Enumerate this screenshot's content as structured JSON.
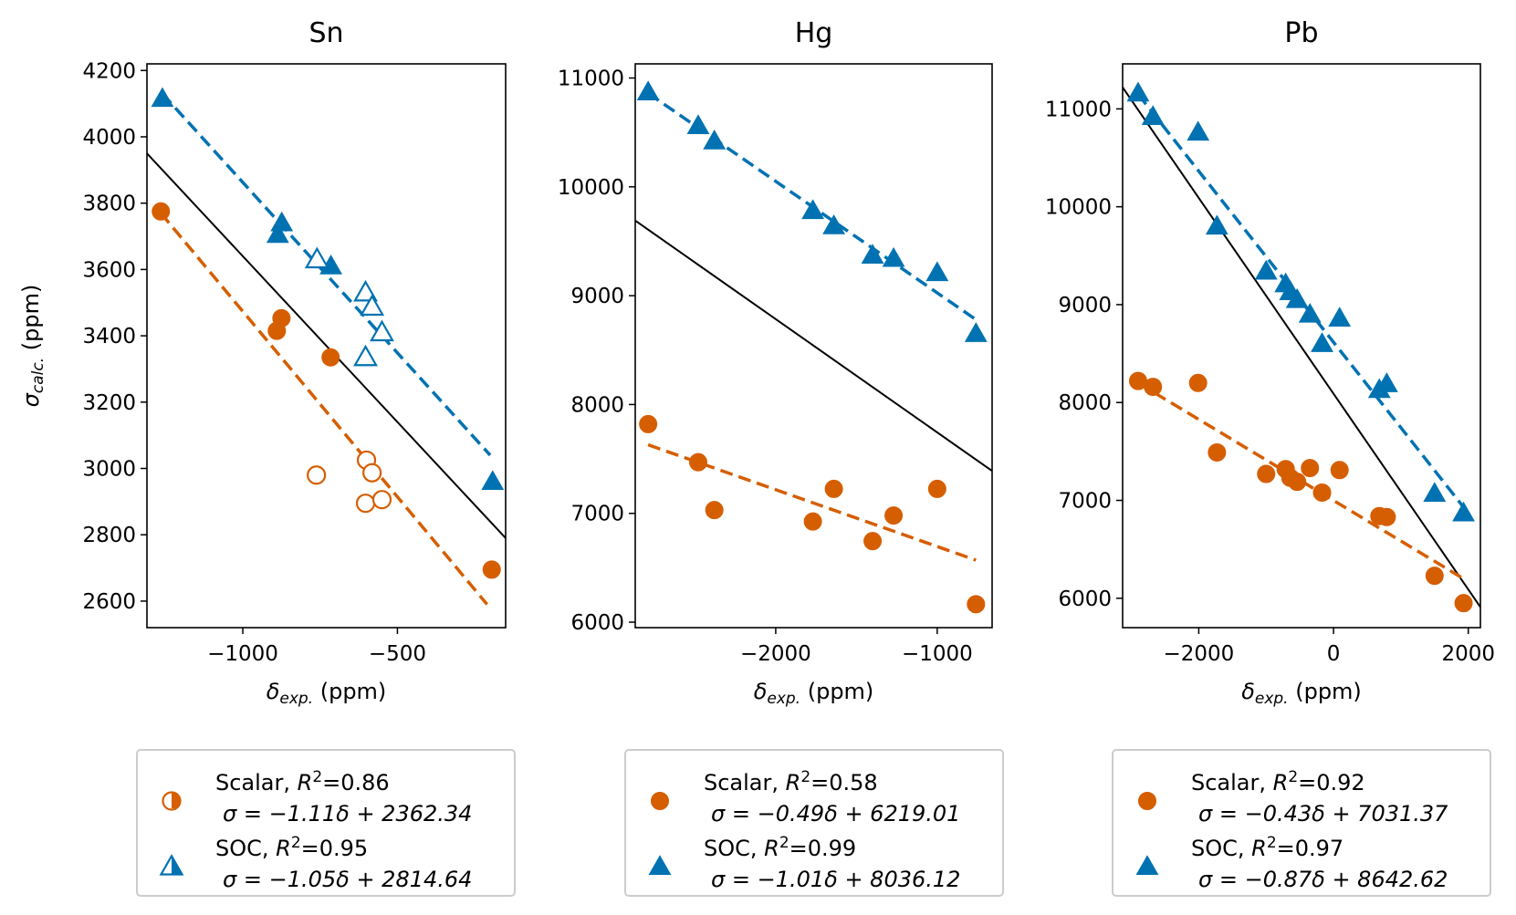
{
  "figure": {
    "ylabel": "σcalc. (ppm)",
    "xlabel": "δexp. (ppm)"
  },
  "colors": {
    "scalar": "#d55e00",
    "soc": "#0072b2",
    "reference": "#000000"
  },
  "chart_data": [
    {
      "type": "scatter",
      "title": "Sn",
      "xlabel": "δexp. (ppm)",
      "ylabel": "σcalc. (ppm)",
      "xlim": [
        -1310,
        -150
      ],
      "ylim": [
        2520,
        4220
      ],
      "xticks": [
        -1000,
        -500
      ],
      "yticks": [
        2600,
        2800,
        3000,
        3200,
        3400,
        3600,
        3800,
        4000,
        4200
      ],
      "reference_line": {
        "x": [
          -1310,
          -150
        ],
        "y": [
          3950,
          2790
        ]
      },
      "series": [
        {
          "name": "Scalar",
          "marker": "circle",
          "fill_note": "filled and open",
          "points": [
            {
              "x": -1265,
              "y": 3775,
              "filled": true
            },
            {
              "x": -890,
              "y": 3415,
              "filled": true
            },
            {
              "x": -875,
              "y": 3453,
              "filled": true
            },
            {
              "x": -716,
              "y": 3335,
              "filled": true
            },
            {
              "x": -195,
              "y": 2695,
              "filled": true
            },
            {
              "x": -762,
              "y": 2980,
              "filled": false
            },
            {
              "x": -600,
              "y": 3025,
              "filled": false
            },
            {
              "x": -582,
              "y": 2987,
              "filled": false
            },
            {
              "x": -603,
              "y": 2895,
              "filled": false
            },
            {
              "x": -550,
              "y": 2906,
              "filled": false
            }
          ],
          "fit": {
            "x": [
              -1265,
              -210
            ],
            "y": [
              3770,
              2590
            ]
          },
          "legend_line1": "Scalar, R²=0.86",
          "legend_line2": "σ = −1.11δ + 2362.34"
        },
        {
          "name": "SOC",
          "marker": "triangle",
          "points": [
            {
              "x": -1260,
              "y": 4115,
              "filled": true
            },
            {
              "x": -887,
              "y": 3705,
              "filled": true
            },
            {
              "x": -874,
              "y": 3740,
              "filled": true
            },
            {
              "x": -715,
              "y": 3610,
              "filled": true
            },
            {
              "x": -192,
              "y": 2960,
              "filled": true
            },
            {
              "x": -760,
              "y": 3630,
              "filled": false
            },
            {
              "x": -603,
              "y": 3530,
              "filled": false
            },
            {
              "x": -582,
              "y": 3487,
              "filled": false
            },
            {
              "x": -603,
              "y": 3335,
              "filled": false
            },
            {
              "x": -550,
              "y": 3410,
              "filled": false
            }
          ],
          "fit": {
            "x": [
              -1260,
              -200
            ],
            "y": [
              4130,
              3040
            ]
          },
          "legend_line1": "SOC, R²=0.95",
          "legend_line2": "σ = −1.05δ + 2814.64"
        }
      ]
    },
    {
      "type": "scatter",
      "title": "Hg",
      "xlabel": "δexp. (ppm)",
      "ylabel": "",
      "xlim": [
        -2870,
        -660
      ],
      "ylim": [
        5950,
        11130
      ],
      "xticks": [
        -2000,
        -1000
      ],
      "yticks": [
        6000,
        7000,
        8000,
        9000,
        10000,
        11000
      ],
      "reference_line": {
        "x": [
          -2870,
          -660
        ],
        "y": [
          9690,
          7390
        ]
      },
      "series": [
        {
          "name": "Scalar",
          "marker": "circle",
          "points": [
            {
              "x": -2790,
              "y": 7820,
              "filled": true
            },
            {
              "x": -2480,
              "y": 7470,
              "filled": true
            },
            {
              "x": -2380,
              "y": 7030,
              "filled": true
            },
            {
              "x": -1770,
              "y": 6925,
              "filled": true
            },
            {
              "x": -1640,
              "y": 7225,
              "filled": true
            },
            {
              "x": -1400,
              "y": 6745,
              "filled": true
            },
            {
              "x": -1270,
              "y": 6980,
              "filled": true
            },
            {
              "x": -1000,
              "y": 7225,
              "filled": true
            },
            {
              "x": -760,
              "y": 6165,
              "filled": true
            }
          ],
          "fit": {
            "x": [
              -2790,
              -760
            ],
            "y": [
              7630,
              6570
            ]
          },
          "legend_line1": "Scalar, R²=0.58",
          "legend_line2": "σ = −0.49δ + 6219.01"
        },
        {
          "name": "SOC",
          "marker": "triangle",
          "points": [
            {
              "x": -2790,
              "y": 10870,
              "filled": true
            },
            {
              "x": -2480,
              "y": 10560,
              "filled": true
            },
            {
              "x": -2380,
              "y": 10420,
              "filled": true
            },
            {
              "x": -1770,
              "y": 9780,
              "filled": true
            },
            {
              "x": -1640,
              "y": 9640,
              "filled": true
            },
            {
              "x": -1400,
              "y": 9370,
              "filled": true
            },
            {
              "x": -1270,
              "y": 9340,
              "filled": true
            },
            {
              "x": -1000,
              "y": 9210,
              "filled": true
            },
            {
              "x": -760,
              "y": 8650,
              "filled": true
            }
          ],
          "fit": {
            "x": [
              -2790,
              -760
            ],
            "y": [
              10860,
              8780
            ]
          },
          "legend_line1": "SOC, R²=0.99",
          "legend_line2": "σ = −1.01δ + 8036.12"
        }
      ]
    },
    {
      "type": "scatter",
      "title": "Pb",
      "xlabel": "δexp. (ppm)",
      "ylabel": "",
      "xlim": [
        -3130,
        2180
      ],
      "ylim": [
        5700,
        11460
      ],
      "xticks": [
        -2000,
        0,
        2000
      ],
      "yticks": [
        6000,
        7000,
        8000,
        9000,
        10000,
        11000
      ],
      "reference_line": {
        "x": [
          -3130,
          2180
        ],
        "y": [
          11220,
          5910
        ]
      },
      "series": [
        {
          "name": "Scalar",
          "marker": "circle",
          "points": [
            {
              "x": -2900,
              "y": 8220,
              "filled": true
            },
            {
              "x": -2680,
              "y": 8160,
              "filled": true
            },
            {
              "x": -2010,
              "y": 8200,
              "filled": true
            },
            {
              "x": -1730,
              "y": 7490,
              "filled": true
            },
            {
              "x": -1000,
              "y": 7270,
              "filled": true
            },
            {
              "x": -710,
              "y": 7320,
              "filled": true
            },
            {
              "x": -640,
              "y": 7230,
              "filled": true
            },
            {
              "x": -540,
              "y": 7190,
              "filled": true
            },
            {
              "x": -350,
              "y": 7330,
              "filled": true
            },
            {
              "x": -170,
              "y": 7080,
              "filled": true
            },
            {
              "x": 90,
              "y": 7310,
              "filled": true
            },
            {
              "x": 680,
              "y": 6840,
              "filled": true
            },
            {
              "x": 790,
              "y": 6830,
              "filled": true
            },
            {
              "x": 1500,
              "y": 6230,
              "filled": true
            },
            {
              "x": 1930,
              "y": 5950,
              "filled": true
            }
          ],
          "fit": {
            "x": [
              -2900,
              1930
            ],
            "y": [
              8200,
              6200
            ]
          },
          "legend_line1": "Scalar, R²=0.92",
          "legend_line2": "σ = −0.43δ + 7031.37"
        },
        {
          "name": "SOC",
          "marker": "triangle",
          "points": [
            {
              "x": -2900,
              "y": 11160,
              "filled": true
            },
            {
              "x": -2680,
              "y": 10920,
              "filled": true
            },
            {
              "x": -2010,
              "y": 10760,
              "filled": true
            },
            {
              "x": -1730,
              "y": 9800,
              "filled": true
            },
            {
              "x": -1000,
              "y": 9340,
              "filled": true
            },
            {
              "x": -710,
              "y": 9210,
              "filled": true
            },
            {
              "x": -640,
              "y": 9130,
              "filled": true
            },
            {
              "x": -540,
              "y": 9050,
              "filled": true
            },
            {
              "x": -350,
              "y": 8900,
              "filled": true
            },
            {
              "x": -170,
              "y": 8600,
              "filled": true
            },
            {
              "x": 90,
              "y": 8860,
              "filled": true
            },
            {
              "x": 680,
              "y": 8130,
              "filled": true
            },
            {
              "x": 790,
              "y": 8190,
              "filled": true
            },
            {
              "x": 1500,
              "y": 7070,
              "filled": true
            },
            {
              "x": 1930,
              "y": 6870,
              "filled": true
            }
          ],
          "fit": {
            "x": [
              -2900,
              1930
            ],
            "y": [
              11150,
              6930
            ]
          },
          "legend_line1": "SOC, R²=0.97",
          "legend_line2": "σ = −0.87δ + 8642.62"
        }
      ]
    }
  ]
}
